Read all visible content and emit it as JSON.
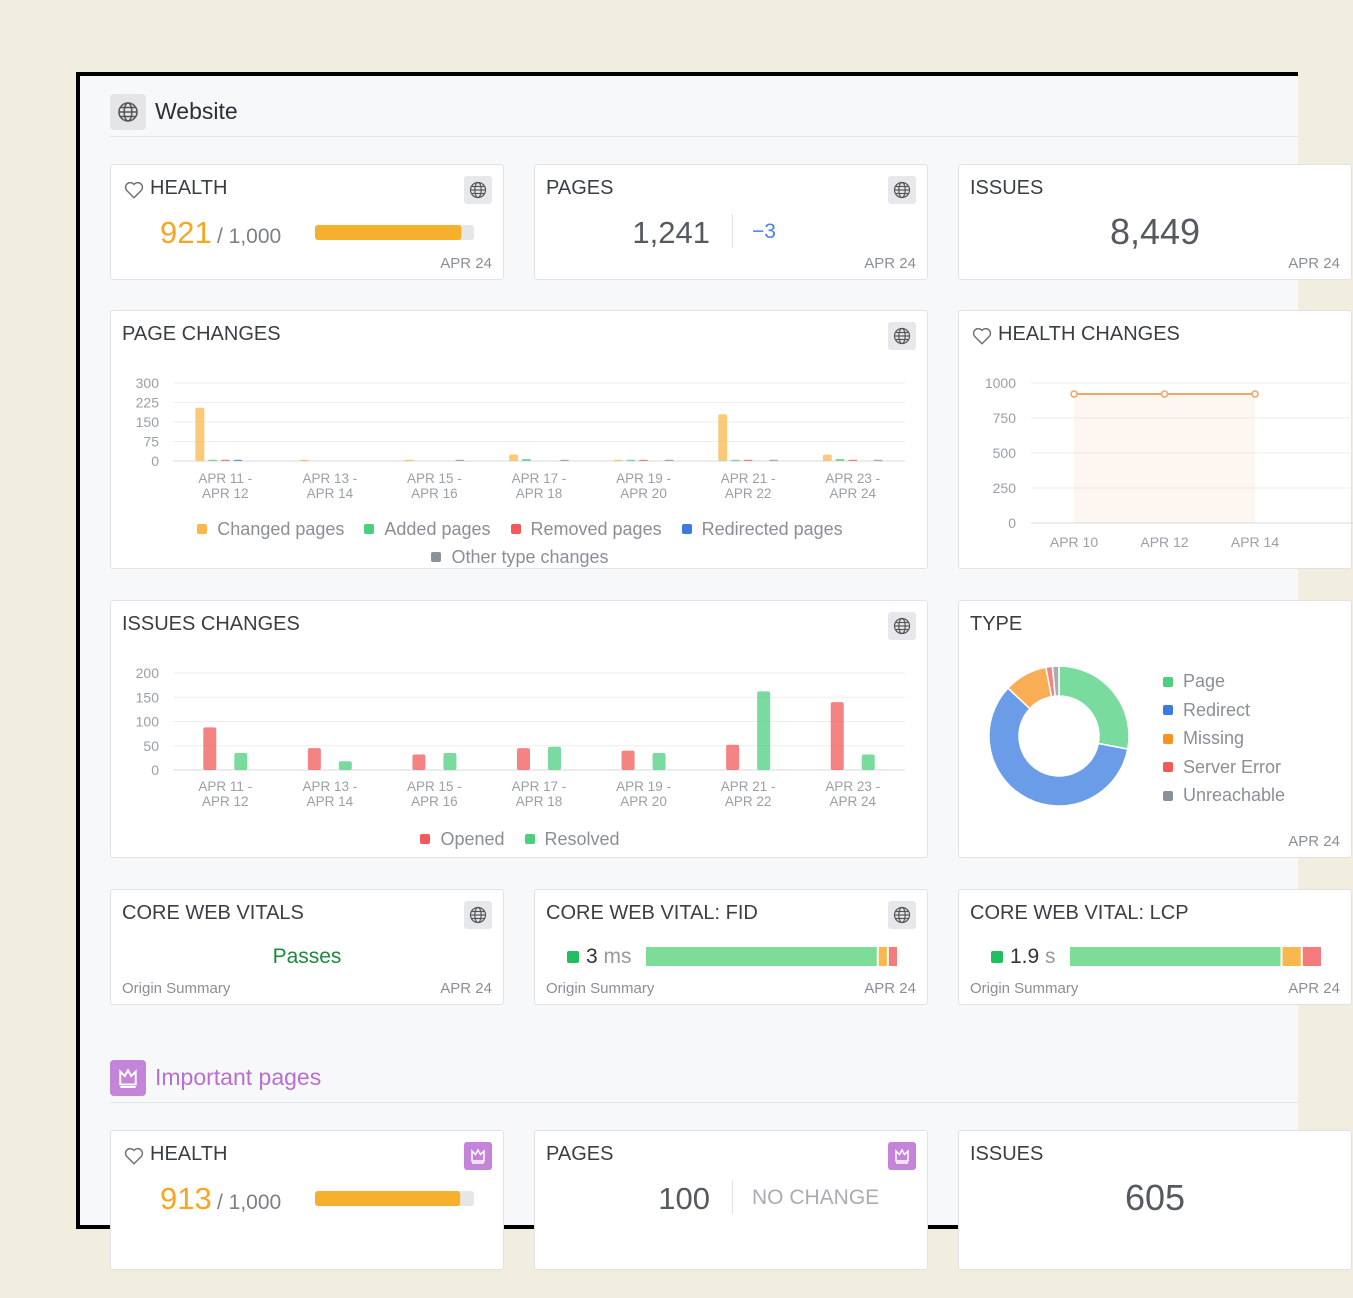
{
  "website": {
    "title": "Website"
  },
  "health": {
    "title": "HEALTH",
    "score": 921,
    "scale": {
      "value": 1000,
      "label": "/ 1,000"
    },
    "date": "APR 24"
  },
  "pages": {
    "title": "PAGES",
    "count": "1,241",
    "change": "−3",
    "date": "APR 24"
  },
  "issues": {
    "title": "ISSUES",
    "count": "8,449",
    "date": "APR 24"
  },
  "page_changes": {
    "title": "PAGE CHANGES",
    "chart_data": {
      "type": "bar",
      "categories": [
        "APR 11 - APR 12",
        "APR 13 - APR 14",
        "APR 15 - APR 16",
        "APR 17 - APR 18",
        "APR 19 - APR 20",
        "APR 21 - APR 22",
        "APR 23 - APR 24"
      ],
      "series": [
        {
          "name": "Changed pages",
          "color": "#f8b84e",
          "values": [
            205,
            5,
            5,
            25,
            5,
            180,
            25
          ]
        },
        {
          "name": "Added pages",
          "color": "#4cd07d",
          "values": [
            5,
            0,
            0,
            8,
            5,
            5,
            8
          ]
        },
        {
          "name": "Removed pages",
          "color": "#f05a5a",
          "values": [
            5,
            0,
            0,
            0,
            5,
            5,
            5
          ]
        },
        {
          "name": "Redirected pages",
          "color": "#3a7be0",
          "values": [
            5,
            0,
            0,
            0,
            0,
            0,
            0
          ]
        },
        {
          "name": "Other type changes",
          "color": "#8b9198",
          "values": [
            0,
            0,
            5,
            5,
            5,
            5,
            5
          ]
        }
      ],
      "ylim": [
        0,
        300
      ],
      "yticks": [
        0,
        75,
        150,
        225,
        300
      ],
      "grid": true
    }
  },
  "health_changes": {
    "title": "HEALTH CHANGES",
    "chart_data": {
      "type": "line",
      "categories": [
        "APR 10",
        "APR 12",
        "APR 14"
      ],
      "series": [
        {
          "color": "#f5a46a",
          "values": [
            921,
            921,
            921
          ]
        }
      ],
      "ylim": [
        0,
        1000
      ],
      "yticks": [
        0,
        250,
        500,
        750,
        1000
      ],
      "grid": true
    }
  },
  "issues_changes": {
    "title": "ISSUES CHANGES",
    "chart_data": {
      "type": "bar",
      "categories": [
        "APR 11 - APR 12",
        "APR 13 - APR 14",
        "APR 15 - APR 16",
        "APR 17 - APR 18",
        "APR 19 - APR 20",
        "APR 21 - APR 22",
        "APR 23 - APR 24"
      ],
      "series": [
        {
          "name": "Opened",
          "color": "#f05a5a",
          "values": [
            88,
            45,
            32,
            45,
            40,
            52,
            140
          ]
        },
        {
          "name": "Resolved",
          "color": "#4cd07d",
          "values": [
            35,
            18,
            35,
            48,
            35,
            162,
            32
          ]
        }
      ],
      "ylim": [
        0,
        200
      ],
      "yticks": [
        0,
        50,
        100,
        150,
        200
      ],
      "grid": true
    }
  },
  "type": {
    "title": "TYPE",
    "date": "APR 24",
    "chart_data": {
      "type": "pie",
      "categories": [
        "Page",
        "Redirect",
        "Missing",
        "Server Error",
        "Unreachable"
      ],
      "values": [
        28,
        59,
        10,
        1.5,
        1.5
      ],
      "colors": [
        "#4cd07d",
        "#3a7be0",
        "#f7931e",
        "#f05a5a",
        "#8b9198"
      ]
    }
  },
  "core_web_vitals": {
    "title": "CORE WEB VITALS",
    "status": "Passes",
    "footer": "Origin Summary",
    "date": "APR 24"
  },
  "fid": {
    "title": "CORE WEB VITAL: FID",
    "value": 3,
    "unit": "ms",
    "distribution": [
      92,
      4,
      4
    ],
    "colors": [
      "#7ddc97",
      "#f8b84e",
      "#f47b7b"
    ],
    "footer": "Origin Summary",
    "date": "APR 24"
  },
  "lcp": {
    "title": "CORE WEB VITAL: LCP",
    "value": 1.9,
    "unit": "s",
    "distribution": [
      84,
      8,
      8
    ],
    "colors": [
      "#7ddc97",
      "#f8b84e",
      "#f47b7b"
    ],
    "footer": "Origin Summary",
    "date": "APR 24"
  },
  "important": {
    "title": "Important pages"
  },
  "important_health": {
    "title": "HEALTH",
    "score": 913,
    "scale": {
      "value": 1000,
      "label": "/ 1,000"
    }
  },
  "important_pages": {
    "title": "PAGES",
    "count": "100",
    "change": "NO CHANGE"
  },
  "important_issues": {
    "title": "ISSUES",
    "count": "605"
  }
}
